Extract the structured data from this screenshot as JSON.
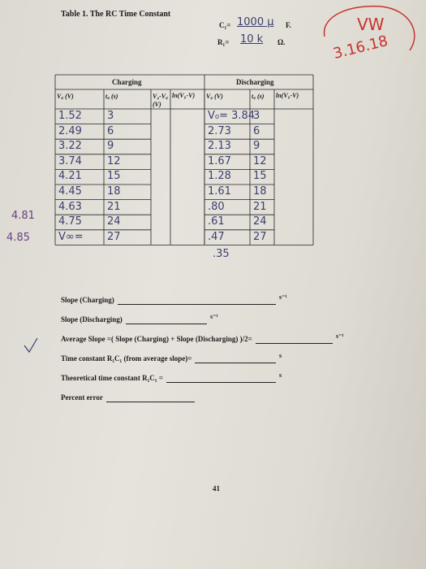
{
  "header": {
    "title": "Table 1. The RC Time Constant",
    "components": [
      {
        "label": "C₁=",
        "value": "1000 μ",
        "unit": "F."
      },
      {
        "label": "R₁=",
        "value": "10 k",
        "unit": "Ω."
      }
    ]
  },
  "corner_note": {
    "initials": "VW",
    "date": "3.16.18"
  },
  "table": {
    "groups": [
      "Charging",
      "Discharging"
    ],
    "headers": [
      "V꜀ (V)",
      "t꜀ (s)",
      "V₀-V꜀ (V)",
      "ln(V₀-V)",
      "V꜀ (V)",
      "t꜀ (s)",
      "ln(V₀-V)"
    ],
    "rows": [
      {
        "charging_v": "1.52",
        "charging_t": "3",
        "discharging_v": "V₀= 3.84",
        "discharging_t": "3"
      },
      {
        "charging_v": "2.49",
        "charging_t": "6",
        "discharging_v": "2.73",
        "discharging_t": "6"
      },
      {
        "charging_v": "3.22",
        "charging_t": "9",
        "discharging_v": "2.13",
        "discharging_t": "9"
      },
      {
        "charging_v": "3.74",
        "charging_t": "12",
        "discharging_v": "1.67",
        "discharging_t": "12"
      },
      {
        "charging_v": "4.21",
        "charging_t": "15",
        "discharging_v": "1.28",
        "discharging_t": "15"
      },
      {
        "charging_v": "4.45",
        "charging_t": "18",
        "discharging_v": "1.61",
        "discharging_t": "18"
      },
      {
        "charging_v": "4.63",
        "charging_t": "21",
        "discharging_v": ".80",
        "discharging_t": "21"
      },
      {
        "charging_v": "4.75",
        "charging_t": "24",
        "discharging_v": ".61",
        "discharging_t": "24"
      },
      {
        "charging_v": "V∞=",
        "charging_t": "27",
        "discharging_v": ".47",
        "discharging_t": "27"
      }
    ]
  },
  "margin_notes": [
    "4.81",
    "4.85"
  ],
  "below_table_note": ".35",
  "questions": [
    {
      "label": "Slope (Charging)",
      "unit": "s⁻¹"
    },
    {
      "label": "Slope (Discharging)",
      "unit": "s⁻¹"
    },
    {
      "label": "Average Slope =( Slope (Charging) + Slope (Discharging) )/2=",
      "unit": "s⁻¹"
    },
    {
      "label": "Time constant R₁C₁ (from average slope)=",
      "unit": "s"
    },
    {
      "label": "Theoretical time constant R₁C₁ =",
      "unit": "s"
    },
    {
      "label": "Percent error"
    }
  ],
  "page_number": "41"
}
